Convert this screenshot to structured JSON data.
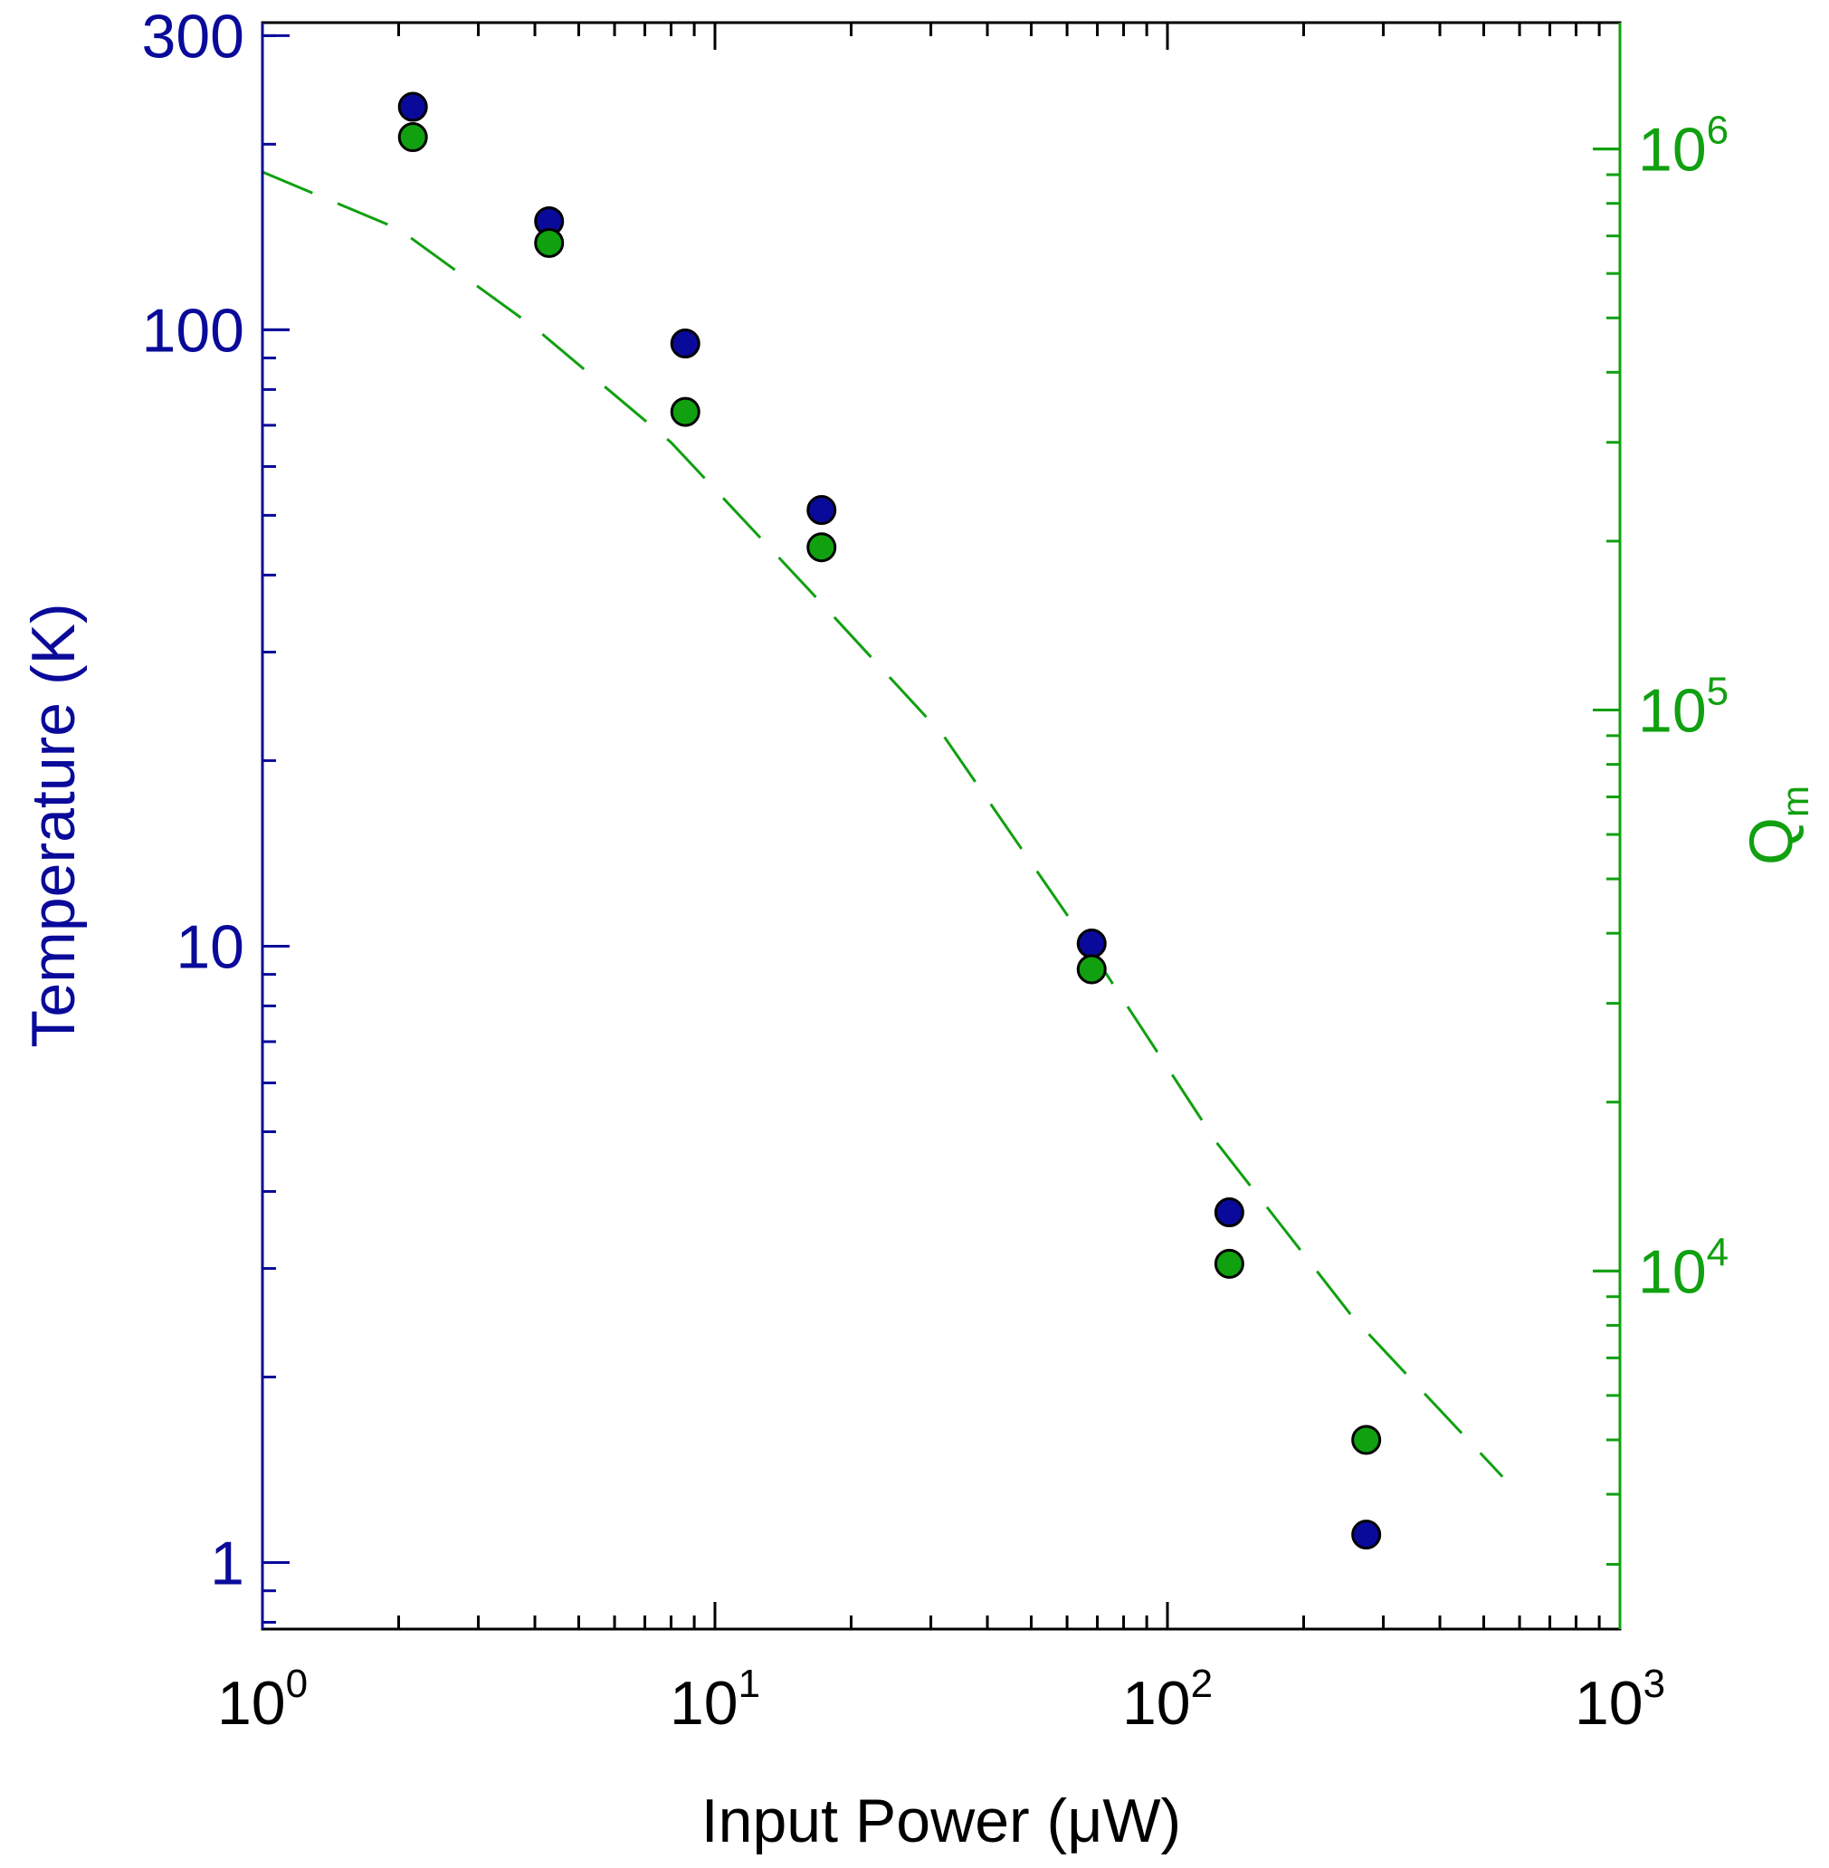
{
  "chart_data": {
    "type": "scatter",
    "xlabel": "Input Power (μW)",
    "ylabel": "Temperature (K)",
    "y2label_main": "Q",
    "y2label_sub": "m",
    "xscale": "log",
    "xlim": [
      1,
      1000
    ],
    "x_ticks": [
      {
        "value": 1,
        "base": "10",
        "exp": "0"
      },
      {
        "value": 10,
        "base": "10",
        "exp": "1"
      },
      {
        "value": 100,
        "base": "10",
        "exp": "2"
      },
      {
        "value": 1000,
        "base": "10",
        "exp": "3"
      }
    ],
    "yscale": "log",
    "ylim": [
      0.78,
      315
    ],
    "y_ticks": [
      {
        "value": 1,
        "label": "1"
      },
      {
        "value": 10,
        "label": "10"
      },
      {
        "value": 100,
        "label": "100"
      },
      {
        "value": 300,
        "label": "300"
      }
    ],
    "y2scale": "log",
    "y2lim": [
      2300,
      1680000
    ],
    "y2_ticks": [
      {
        "value": 10000,
        "base": "10",
        "exp": "4"
      },
      {
        "value": 100000,
        "base": "10",
        "exp": "5"
      },
      {
        "value": 1000000,
        "base": "10",
        "exp": "6"
      }
    ],
    "colors": {
      "temperature_axis": "#0a0a9a",
      "q_axis": "#10a010",
      "temperature_points": "#0a0a9a",
      "q_points": "#10a010",
      "q_curve": "#10a010",
      "point_edge": "#000000",
      "axis": "#000000"
    },
    "series": [
      {
        "name": "Temperature",
        "axis": "left",
        "marker": "circle",
        "color": "#0a0a9a",
        "points": [
          {
            "x": 2.15,
            "y": 230
          },
          {
            "x": 4.3,
            "y": 150
          },
          {
            "x": 8.6,
            "y": 95
          },
          {
            "x": 17.2,
            "y": 51
          },
          {
            "x": 68,
            "y": 10.1
          },
          {
            "x": 137,
            "y": 3.7
          },
          {
            "x": 275,
            "y": 1.11
          }
        ]
      },
      {
        "name": "Q_m",
        "axis": "right",
        "marker": "circle",
        "color": "#10a010",
        "points": [
          {
            "x": 2.15,
            "y": 1050000
          },
          {
            "x": 4.3,
            "y": 680000
          },
          {
            "x": 8.6,
            "y": 340000
          },
          {
            "x": 17.2,
            "y": 195000
          },
          {
            "x": 68,
            "y": 34500
          },
          {
            "x": 137,
            "y": 10300
          },
          {
            "x": 275,
            "y": 5000
          }
        ]
      },
      {
        "name": "Q_m model",
        "axis": "right",
        "style": "dashed-line",
        "color": "#10a010",
        "points": [
          {
            "x": 1.0,
            "y": 910000
          },
          {
            "x": 2.0,
            "y": 720000
          },
          {
            "x": 4.0,
            "y": 480000
          },
          {
            "x": 8.0,
            "y": 300000
          },
          {
            "x": 16.0,
            "y": 165000
          },
          {
            "x": 32.0,
            "y": 90000
          },
          {
            "x": 64.0,
            "y": 40000
          },
          {
            "x": 128.0,
            "y": 17000
          },
          {
            "x": 256.0,
            "y": 8300
          },
          {
            "x": 550.0,
            "y": 4300
          }
        ]
      }
    ]
  }
}
